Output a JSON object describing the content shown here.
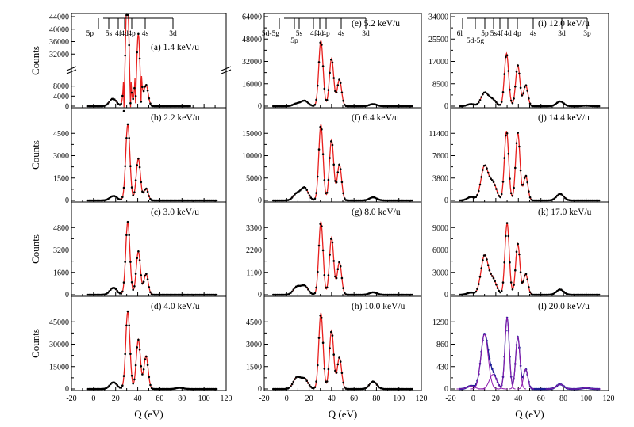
{
  "figure": {
    "x_axis_label": "Q (eV)",
    "y_axis_label": "Counts",
    "x_ticks": [
      "-20",
      "0",
      "20",
      "40",
      "60",
      "80",
      "100",
      "120"
    ],
    "colors": {
      "data_points": "#000000",
      "fit_line": "#e8201e",
      "component_lines": "#8e1cae",
      "sum_fit_points": "#1c1c96",
      "axes": "#000000"
    }
  },
  "chart_data": [
    {
      "type": "line",
      "panel_label": "(a) 1.4 keV/u",
      "y_axis_label": "Counts",
      "x_axis_label": "",
      "y_ticks_upper": [
        "32000",
        "36000",
        "40000",
        "44000"
      ],
      "y_ticks_lower": [
        "0",
        "4000",
        "8000"
      ],
      "axis_break": true,
      "xlim": [
        -20,
        120
      ],
      "peaks": [
        {
          "center": 17.5,
          "height": 3.0
        },
        {
          "center": 30.5,
          "height": 52
        },
        {
          "center": 40.5,
          "height": 38.5
        },
        {
          "center": 47.5,
          "height": 8.5
        }
      ],
      "levels": {
        "top": [
          "5p",
          "5s",
          "4f",
          "4d",
          "4p",
          "4s",
          "3d"
        ]
      }
    },
    {
      "type": "line",
      "panel_label": "(e) 5.2 keV/u",
      "y_ticks": [
        "0",
        "16000",
        "32000",
        "48000",
        "64000"
      ],
      "xlim": [
        -20,
        120
      ],
      "ylim": [
        0,
        64000
      ],
      "peaks": [
        {
          "center": 9,
          "height": 1800
        },
        {
          "center": 16,
          "height": 3800
        },
        {
          "center": 30.5,
          "height": 47000
        },
        {
          "center": 40,
          "height": 34000
        },
        {
          "center": 47,
          "height": 19000
        },
        {
          "center": 77,
          "height": 1500
        }
      ],
      "levels": {
        "top": [
          "5d-5g",
          "5p",
          "5s",
          "4f",
          "4d",
          "4p",
          "4s",
          "3d"
        ]
      }
    },
    {
      "type": "line",
      "panel_label": "(i) 12.0 keV/u",
      "y_ticks": [
        "0",
        "8500",
        "17000",
        "25500",
        "34000"
      ],
      "xlim": [
        -20,
        120
      ],
      "ylim": [
        0,
        34000
      ],
      "peaks": [
        {
          "center": -2,
          "height": 800
        },
        {
          "center": 10,
          "height": 5000
        },
        {
          "center": 17,
          "height": 2500
        },
        {
          "center": 29.5,
          "height": 20000
        },
        {
          "center": 39.5,
          "height": 15500
        },
        {
          "center": 46.5,
          "height": 8000
        },
        {
          "center": 77,
          "height": 1800
        },
        {
          "center": 100,
          "height": 200
        }
      ],
      "levels": {
        "top": [
          "6l",
          "5d-5g",
          "5p",
          "5s",
          "4f",
          "4d",
          "4p",
          "4s",
          "3d",
          "3p"
        ]
      }
    },
    {
      "type": "line",
      "panel_label": "(b) 2.2 keV/u",
      "y_ticks": [
        "0",
        "1500",
        "3000",
        "4500"
      ],
      "xlim": [
        -20,
        120
      ],
      "ylim": [
        0,
        6000
      ],
      "peaks": [
        {
          "center": 18,
          "height": 300
        },
        {
          "center": 31,
          "height": 5100
        },
        {
          "center": 40.5,
          "height": 2800
        },
        {
          "center": 47.5,
          "height": 800
        }
      ]
    },
    {
      "type": "line",
      "panel_label": "(f) 6.4 keV/u",
      "y_ticks": [
        "0",
        "5000",
        "10000",
        "15000"
      ],
      "xlim": [
        -20,
        120
      ],
      "ylim": [
        0,
        20000
      ],
      "peaks": [
        {
          "center": 9,
          "height": 1500
        },
        {
          "center": 16,
          "height": 2800
        },
        {
          "center": 30.5,
          "height": 17000
        },
        {
          "center": 40,
          "height": 13500
        },
        {
          "center": 47,
          "height": 8000
        },
        {
          "center": 77,
          "height": 700
        }
      ]
    },
    {
      "type": "line",
      "panel_label": "(j) 14.4 keV/u",
      "y_ticks": [
        "0",
        "3800",
        "7600",
        "11400"
      ],
      "xlim": [
        -20,
        120
      ],
      "ylim": [
        0,
        15200
      ],
      "peaks": [
        {
          "center": -2,
          "height": 600
        },
        {
          "center": 10,
          "height": 5800
        },
        {
          "center": 17.5,
          "height": 2900
        },
        {
          "center": 29.5,
          "height": 11800
        },
        {
          "center": 39.5,
          "height": 11500
        },
        {
          "center": 46.5,
          "height": 4200
        },
        {
          "center": 77,
          "height": 1100
        }
      ]
    },
    {
      "type": "line",
      "panel_label": "(c) 3.0 keV/u",
      "y_ticks": [
        "0",
        "1600",
        "3200",
        "4800"
      ],
      "xlim": [
        -20,
        120
      ],
      "ylim": [
        0,
        6400
      ],
      "peaks": [
        {
          "center": 18,
          "height": 500
        },
        {
          "center": 31,
          "height": 5200
        },
        {
          "center": 40.5,
          "height": 3100
        },
        {
          "center": 47.5,
          "height": 1500
        }
      ]
    },
    {
      "type": "line",
      "panel_label": "(g) 8.0 keV/u",
      "y_ticks": [
        "0",
        "1100",
        "2200",
        "3300"
      ],
      "xlim": [
        -20,
        120
      ],
      "ylim": [
        0,
        4400
      ],
      "peaks": [
        {
          "center": 9,
          "height": 380
        },
        {
          "center": 16,
          "height": 420
        },
        {
          "center": 30.5,
          "height": 3600
        },
        {
          "center": 40,
          "height": 2800
        },
        {
          "center": 47,
          "height": 1600
        },
        {
          "center": 77,
          "height": 120
        }
      ]
    },
    {
      "type": "line",
      "panel_label": "(k) 17.0 keV/u",
      "y_ticks": [
        "0",
        "3000",
        "6000",
        "9000"
      ],
      "xlim": [
        -20,
        120
      ],
      "ylim": [
        0,
        12000
      ],
      "peaks": [
        {
          "center": -2,
          "height": 300
        },
        {
          "center": 10,
          "height": 5200
        },
        {
          "center": 17.5,
          "height": 2000
        },
        {
          "center": 30,
          "height": 9600
        },
        {
          "center": 39.5,
          "height": 6800
        },
        {
          "center": 46.5,
          "height": 2800
        },
        {
          "center": 77,
          "height": 700
        }
      ]
    },
    {
      "type": "line",
      "panel_label": "(d) 4.0 keV/u",
      "y_axis_label": "Counts",
      "y_ticks": [
        "0",
        "15000",
        "30000",
        "45000"
      ],
      "xlim": [
        -20,
        120
      ],
      "ylim": [
        0,
        60000
      ],
      "peaks": [
        {
          "center": 18,
          "height": 4500
        },
        {
          "center": 31,
          "height": 52000
        },
        {
          "center": 40.5,
          "height": 33000
        },
        {
          "center": 47.5,
          "height": 22000
        },
        {
          "center": 78,
          "height": 800
        }
      ]
    },
    {
      "type": "line",
      "panel_label": "(h) 10.0 keV/u",
      "y_ticks": [
        "0",
        "1500",
        "3000",
        "4500"
      ],
      "xlim": [
        -20,
        120
      ],
      "ylim": [
        0,
        6000
      ],
      "peaks": [
        {
          "center": 9,
          "height": 750
        },
        {
          "center": 16,
          "height": 650
        },
        {
          "center": 30.5,
          "height": 5100
        },
        {
          "center": 40,
          "height": 3900
        },
        {
          "center": 47,
          "height": 2100
        },
        {
          "center": 77,
          "height": 500
        }
      ]
    },
    {
      "type": "line",
      "panel_label": "(l) 20.0 keV/u",
      "y_ticks": [
        "0",
        "430",
        "860",
        "1290"
      ],
      "xlim": [
        -20,
        120
      ],
      "ylim": [
        0,
        1720
      ],
      "fit_components": true,
      "peaks": [
        {
          "center": -2,
          "height": 60
        },
        {
          "center": 10,
          "height": 1050
        },
        {
          "center": 17.5,
          "height": 280
        },
        {
          "center": 30,
          "height": 1370
        },
        {
          "center": 39.5,
          "height": 1000
        },
        {
          "center": 46.5,
          "height": 380
        },
        {
          "center": 77,
          "height": 90
        },
        {
          "center": 100,
          "height": 20
        }
      ]
    }
  ]
}
